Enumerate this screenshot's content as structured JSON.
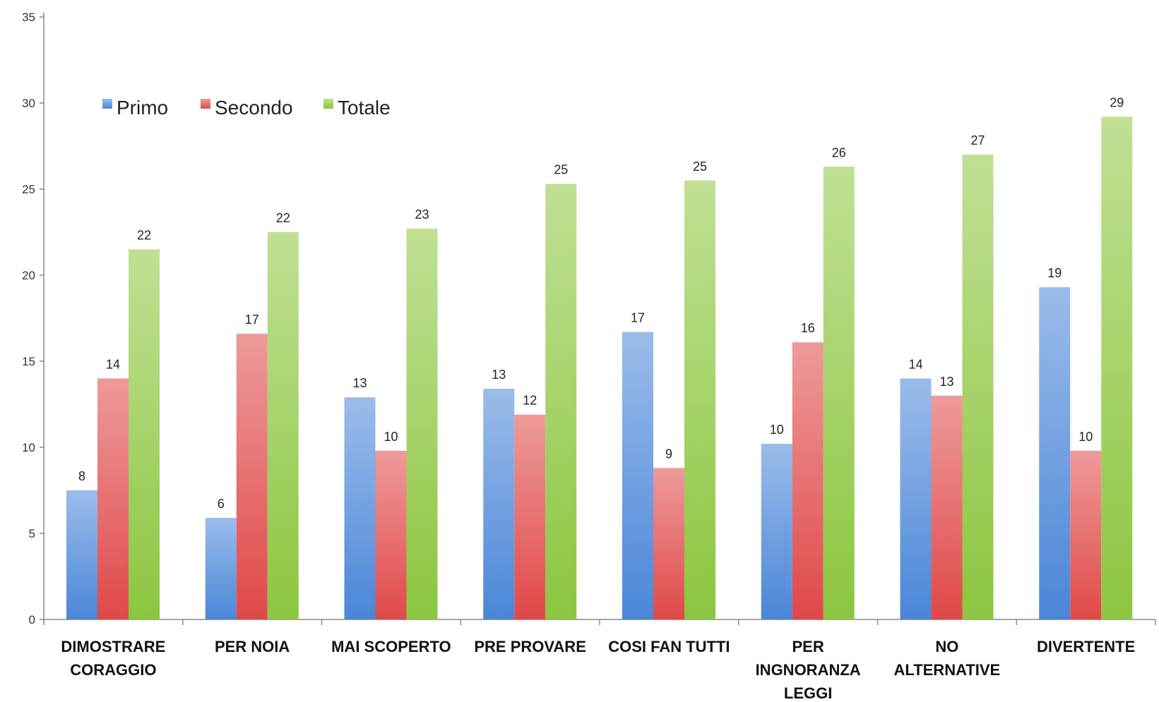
{
  "chart_data": {
    "type": "bar",
    "title": "",
    "xlabel": "",
    "ylabel": "",
    "ylim": [
      0,
      35
    ],
    "yticks": [
      0,
      5,
      10,
      15,
      20,
      25,
      30,
      35
    ],
    "grid": false,
    "legend_position": "top-left",
    "categories": [
      [
        "DIMOSTRARE",
        "CORAGGIO"
      ],
      [
        "PER NOIA"
      ],
      [
        "MAI SCOPERTO"
      ],
      [
        "PRE PROVARE"
      ],
      [
        "COSI FAN TUTTI"
      ],
      [
        "PER",
        "INGNORANZA",
        "LEGGI"
      ],
      [
        "NO",
        "ALTERNATIVE"
      ],
      [
        "DIVERTENTE"
      ]
    ],
    "series": [
      {
        "name": "Primo",
        "color": "#4a86d8",
        "values": [
          7.5,
          5.9,
          12.9,
          13.4,
          16.7,
          10.2,
          14.0,
          19.3
        ],
        "labels": [
          "8",
          "6",
          "13",
          "13",
          "17",
          "10",
          "14",
          "19"
        ]
      },
      {
        "name": "Secondo",
        "color": "#e04848",
        "values": [
          14.0,
          16.6,
          9.8,
          11.9,
          8.8,
          16.1,
          13.0,
          9.8
        ],
        "labels": [
          "14",
          "17",
          "10",
          "12",
          "9",
          "16",
          "13",
          "10"
        ]
      },
      {
        "name": "Totale",
        "color": "#8cc63f",
        "values": [
          21.5,
          22.5,
          22.7,
          25.3,
          25.5,
          26.3,
          27.0,
          29.2
        ],
        "labels": [
          "22",
          "22",
          "23",
          "25",
          "25",
          "26",
          "27",
          "29"
        ]
      }
    ]
  }
}
